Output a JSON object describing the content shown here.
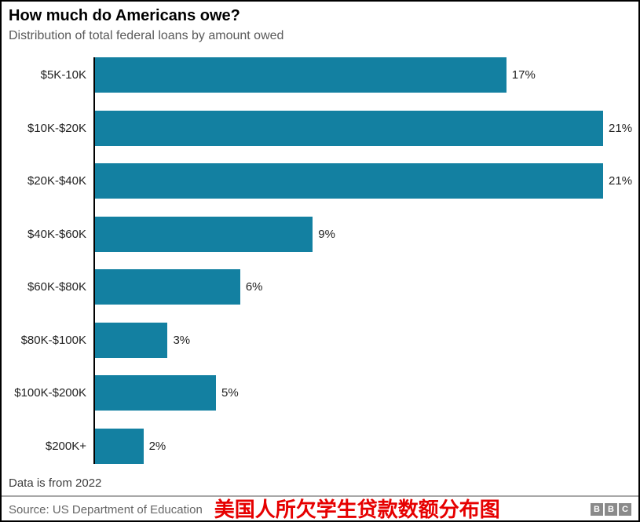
{
  "header": {
    "title": "How much do Americans owe?",
    "subtitle": "Distribution of total federal loans by amount owed"
  },
  "chart_data": {
    "type": "bar",
    "orientation": "horizontal",
    "title": "How much do Americans owe?",
    "subtitle": "Distribution of total federal loans by amount owed",
    "categories": [
      "$5K-10K",
      "$10K-$20K",
      "$20K-$40K",
      "$40K-$60K",
      "$60K-$80K",
      "$80K-$100K",
      "$100K-$200K",
      "$200K+"
    ],
    "values": [
      17,
      21,
      21,
      9,
      6,
      3,
      5,
      2
    ],
    "value_labels": [
      "17%",
      "21%",
      "21%",
      "9%",
      "6%",
      "3%",
      "5%",
      "2%"
    ],
    "unit": "%",
    "xlabel": "",
    "ylabel": "",
    "xlim": [
      0,
      22
    ],
    "grid": false,
    "legend": false,
    "bar_color": "#1380a1",
    "axis_color": "#000000"
  },
  "footer": {
    "note": "Data is from 2022",
    "source": "Source: US Department of Education",
    "annotation": "美国人所欠学生贷款数额分布图",
    "annotation_color": "#e60000",
    "logo_letters": [
      "B",
      "B",
      "C"
    ]
  }
}
